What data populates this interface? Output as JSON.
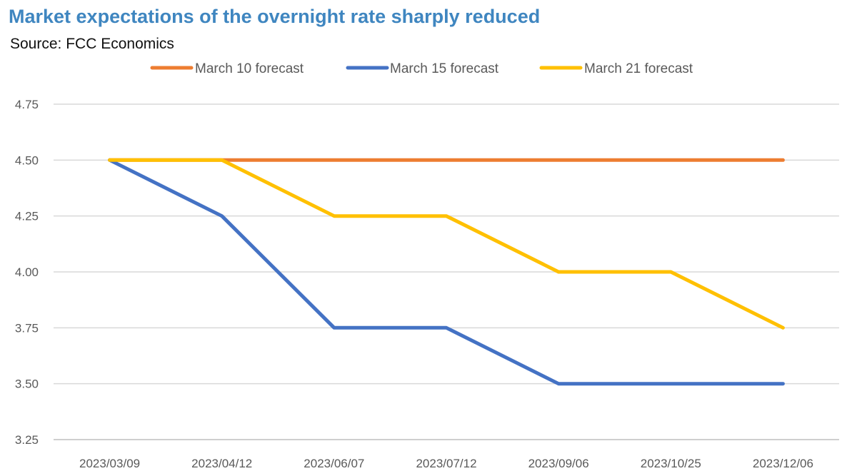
{
  "header": {
    "title": "Market expectations of the overnight rate sharply reduced",
    "source": "Source: FCC Economics"
  },
  "chart_data": {
    "type": "line",
    "title": "Market expectations of the overnight rate sharply reduced",
    "subtitle": "Source: FCC Economics",
    "xlabel": "",
    "ylabel": "",
    "categories": [
      "2023/03/09",
      "2023/04/12",
      "2023/06/07",
      "2023/07/12",
      "2023/09/06",
      "2023/10/25",
      "2023/12/06"
    ],
    "ylim": [
      3.25,
      4.75
    ],
    "yticks": [
      "3.25",
      "3.50",
      "3.75",
      "4.00",
      "4.25",
      "4.50",
      "4.75"
    ],
    "grid": true,
    "legend_position": "top",
    "series": [
      {
        "name": "March 10 forecast",
        "color": "#ed7d31",
        "values": [
          4.5,
          4.5,
          4.5,
          4.5,
          4.5,
          4.5,
          4.5
        ]
      },
      {
        "name": "March 15 forecast",
        "color": "#4472c4",
        "values": [
          4.5,
          4.25,
          3.75,
          3.75,
          3.5,
          3.5,
          3.5
        ]
      },
      {
        "name": "March 21 forecast",
        "color": "#ffc000",
        "values": [
          4.5,
          4.5,
          4.25,
          4.25,
          4.0,
          4.0,
          3.75
        ]
      }
    ]
  }
}
